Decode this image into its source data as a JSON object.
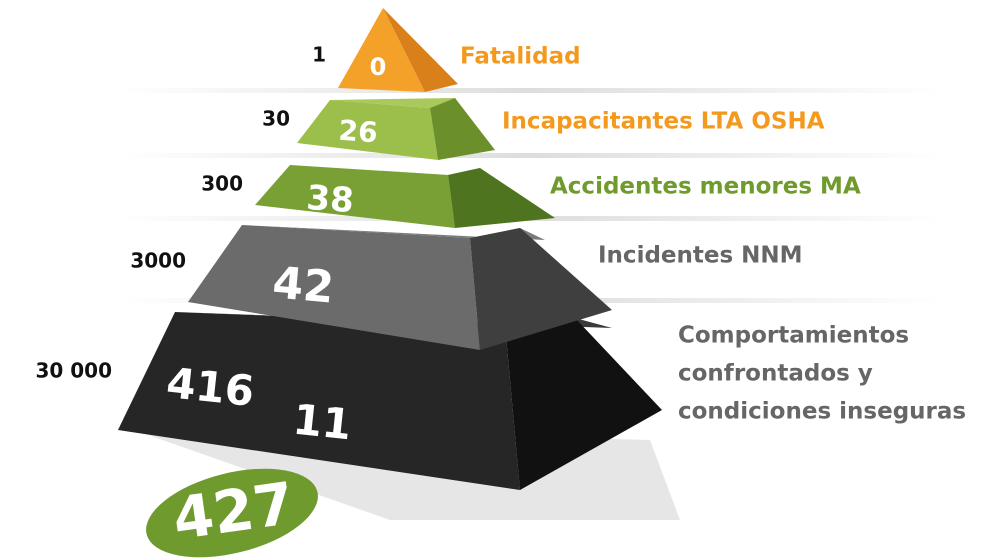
{
  "levels": [
    {
      "ratio": 1,
      "count": 0,
      "label": "Fatalidad"
    },
    {
      "ratio": 30,
      "count": 26,
      "label": "Incapacitantes LTA OSHA"
    },
    {
      "ratio": 300,
      "count": 38,
      "label": "Accidentes menores MA"
    },
    {
      "ratio": 3000,
      "count": 42,
      "label": "Incidentes NNM"
    },
    {
      "ratio": "30 000",
      "counts": [
        416,
        11
      ],
      "label": [
        "Comportamientos",
        "confrontados y",
        "condiciones inseguras"
      ]
    }
  ],
  "total": 427
}
